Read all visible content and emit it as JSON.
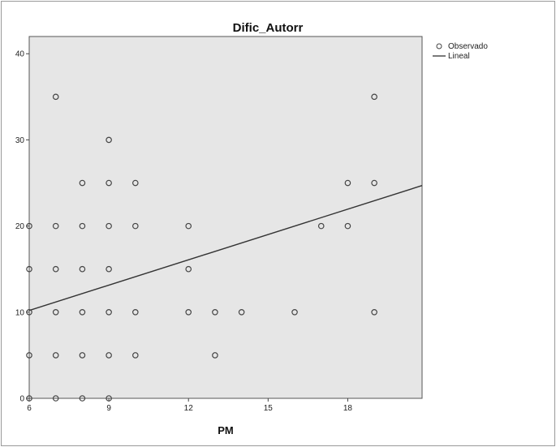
{
  "chart_data": {
    "type": "scatter",
    "title": "Dific_Autorr",
    "xlabel": "PM",
    "ylabel": "",
    "xlim": [
      6,
      20.8
    ],
    "ylim": [
      0,
      42
    ],
    "x_ticks": [
      6,
      9,
      12,
      15,
      18
    ],
    "y_ticks": [
      0,
      10,
      20,
      30,
      40
    ],
    "grid": false,
    "legend_position": "top-right",
    "plot_background": "#e6e6e6",
    "series": [
      {
        "name": "Observado",
        "type": "scatter",
        "marker": "open-circle",
        "color": "#444444",
        "points": [
          [
            6,
            0
          ],
          [
            6,
            5
          ],
          [
            6,
            10
          ],
          [
            6,
            15
          ],
          [
            6,
            20
          ],
          [
            7,
            0
          ],
          [
            7,
            5
          ],
          [
            7,
            10
          ],
          [
            7,
            15
          ],
          [
            7,
            20
          ],
          [
            7,
            35
          ],
          [
            8,
            0
          ],
          [
            8,
            5
          ],
          [
            8,
            10
          ],
          [
            8,
            15
          ],
          [
            8,
            20
          ],
          [
            8,
            25
          ],
          [
            9,
            0
          ],
          [
            9,
            5
          ],
          [
            9,
            10
          ],
          [
            9,
            15
          ],
          [
            9,
            20
          ],
          [
            9,
            25
          ],
          [
            9,
            30
          ],
          [
            10,
            5
          ],
          [
            10,
            10
          ],
          [
            10,
            20
          ],
          [
            10,
            25
          ],
          [
            12,
            10
          ],
          [
            12,
            15
          ],
          [
            12,
            20
          ],
          [
            13,
            5
          ],
          [
            13,
            10
          ],
          [
            14,
            10
          ],
          [
            16,
            10
          ],
          [
            17,
            20
          ],
          [
            18,
            20
          ],
          [
            18,
            25
          ],
          [
            19,
            10
          ],
          [
            19,
            25
          ],
          [
            19,
            35
          ]
        ]
      },
      {
        "name": "Lineal",
        "type": "line",
        "color": "#333333",
        "points": [
          [
            6,
            10.2
          ],
          [
            20.8,
            24.7
          ]
        ]
      }
    ]
  }
}
